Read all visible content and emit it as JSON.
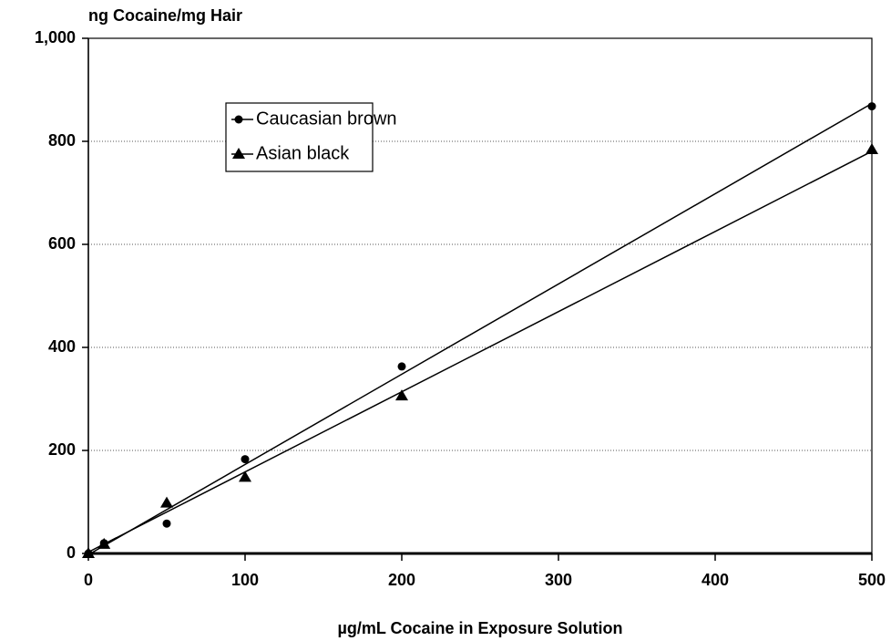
{
  "chart_data": {
    "type": "scatter",
    "y_label": "ng Cocaine/mg Hair",
    "x_label": "µg/mL Cocaine in Exposure Solution",
    "series": [
      {
        "name": "Caucasian brown",
        "color": "#000000",
        "marker": "circle",
        "x": [
          0,
          10,
          50,
          100,
          200,
          500
        ],
        "values": [
          0,
          20,
          58,
          183,
          363,
          868
        ]
      },
      {
        "name": "Asian black",
        "color": "#000000",
        "marker": "triangle",
        "x": [
          0,
          10,
          50,
          100,
          200,
          500
        ],
        "values": [
          0,
          18,
          98,
          148,
          306,
          784
        ]
      }
    ],
    "trendline": "linear",
    "xlim": [
      0,
      500
    ],
    "xticks": [
      0,
      100,
      200,
      300,
      400,
      500
    ],
    "ylim": [
      0,
      1000
    ],
    "yticks": [
      0,
      200,
      400,
      600,
      800,
      {
        "value": 1000,
        "label": "1,000"
      }
    ],
    "grid": true,
    "legend": "upper left"
  }
}
